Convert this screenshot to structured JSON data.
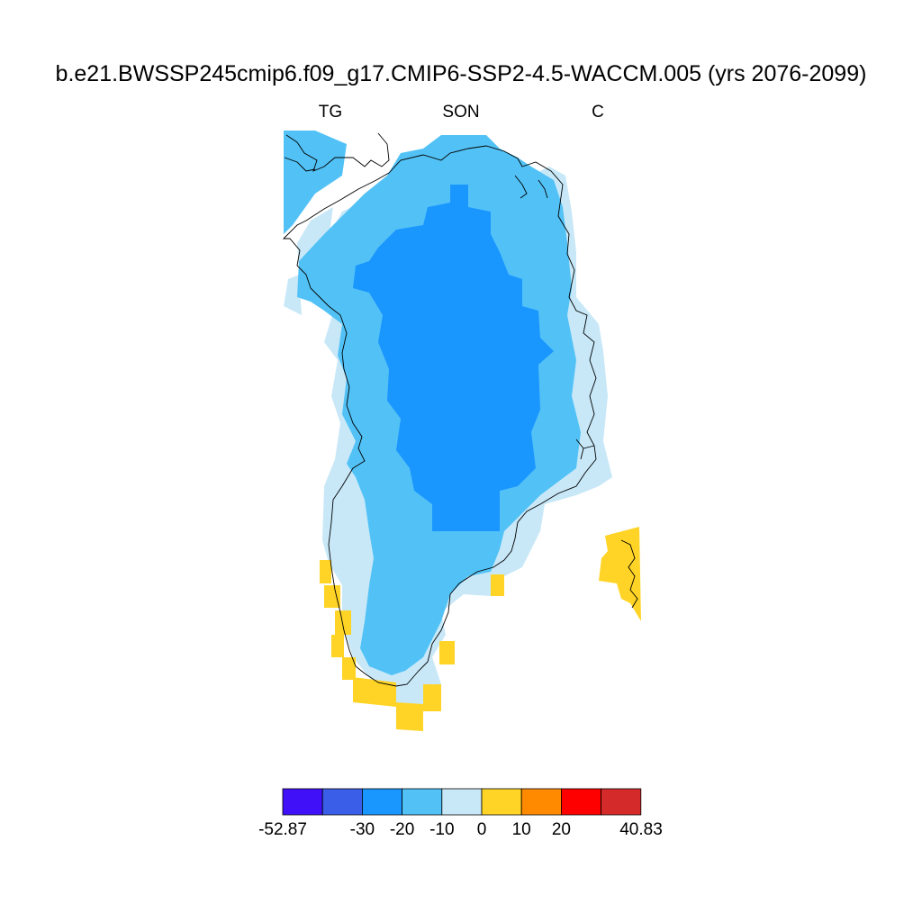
{
  "title": "b.e21.BWSSP245cmip6.f09_g17.CMIP6-SSP2-4.5-WACCM.005 (yrs 2076-2099)",
  "left_label": "TG",
  "center_label": "SON",
  "right_label": "C",
  "colors": {
    "bin_lt_m30": "#4010f8",
    "bin_m30_m20": "#3a5ee8",
    "bin_m20_m10": "#1a96ff",
    "bin_m10_0": "#52c2f6",
    "bin_0_10": "#c8e8f8",
    "bin_10_20": "#ffd426",
    "bin_20_x": "#ff8a00",
    "bin_x_40": "#ff0000",
    "bin_gt_40": "#d42a2a",
    "coastline": "#000000"
  },
  "colorbar": {
    "min_label": "-52.87",
    "max_label": "40.83",
    "tick_labels": [
      "-30",
      "-20",
      "-10",
      "0",
      "10",
      "20"
    ],
    "bins": [
      {
        "color": "#4010f8"
      },
      {
        "color": "#3a5ee8"
      },
      {
        "color": "#1a96ff"
      },
      {
        "color": "#52c2f6"
      },
      {
        "color": "#c8e8f8"
      },
      {
        "color": "#ffd426"
      },
      {
        "color": "#ff8a00"
      },
      {
        "color": "#ff0000"
      },
      {
        "color": "#d42a2a"
      }
    ]
  }
}
